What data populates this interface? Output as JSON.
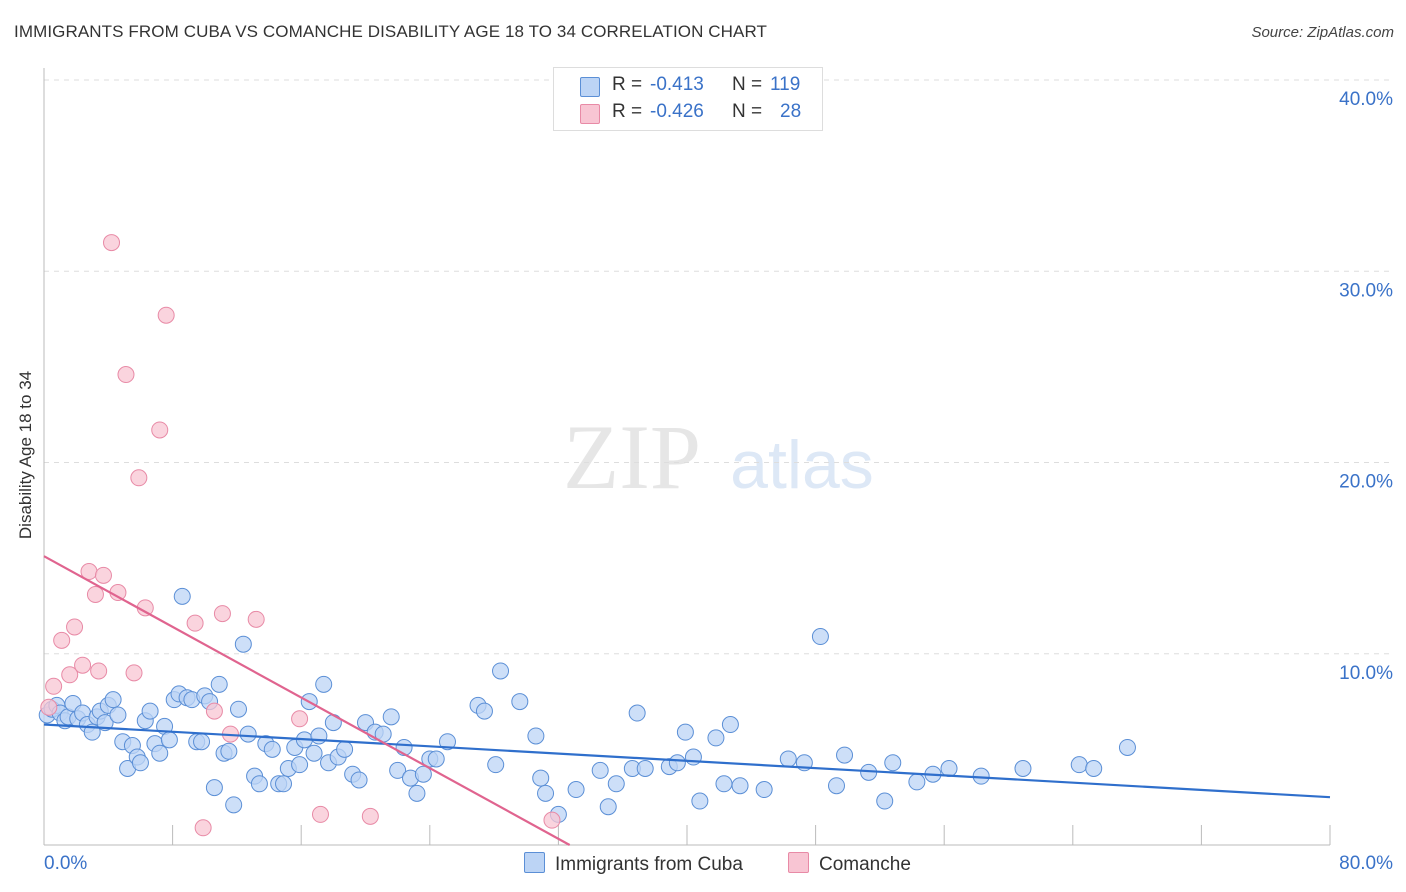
{
  "header": {
    "title": "IMMIGRANTS FROM CUBA VS COMANCHE DISABILITY AGE 18 TO 34 CORRELATION CHART",
    "source": "Source: ZipAtlas.com"
  },
  "watermark": {
    "zip": "ZIP",
    "atlas": "atlas"
  },
  "colors": {
    "cuba_fill": "#bcd4f5",
    "cuba_stroke": "#5b8fd6",
    "cuba_line": "#2f6fcc",
    "comanche_fill": "#f8c5d3",
    "comanche_stroke": "#e88aa6",
    "comanche_line": "#e0648f",
    "tick_label": "#3a72c8",
    "grid": "#dddddd"
  },
  "stats": {
    "cuba": {
      "r_label": "R =",
      "r_value": "-0.413",
      "n_label": "N =",
      "n_value": "119"
    },
    "comanche": {
      "r_label": "R =",
      "r_value": "-0.426",
      "n_label": "N =",
      "n_value": "28"
    }
  },
  "chart_data": {
    "type": "scatter",
    "title": "IMMIGRANTS FROM CUBA VS COMANCHE DISABILITY AGE 18 TO 34 CORRELATION CHART",
    "xlabel": "",
    "ylabel": "Disability Age 18 to 34",
    "xlim": [
      0,
      80
    ],
    "ylim": [
      0,
      40
    ],
    "x_tick_labels": [
      "0.0%",
      "80.0%"
    ],
    "y_ticks": [
      10,
      20,
      30,
      40
    ],
    "y_tick_labels": [
      "10.0%",
      "20.0%",
      "30.0%",
      "40.0%"
    ],
    "grid": true,
    "legend_position": "bottom-center",
    "series": [
      {
        "name": "Immigrants from Cuba",
        "trend": {
          "x": [
            0,
            80
          ],
          "y": [
            6.3,
            2.5
          ]
        },
        "points": [
          [
            0.2,
            6.8
          ],
          [
            0.5,
            7.1
          ],
          [
            0.8,
            7.3
          ],
          [
            1.0,
            6.9
          ],
          [
            1.3,
            6.5
          ],
          [
            1.5,
            6.7
          ],
          [
            1.8,
            7.4
          ],
          [
            2.1,
            6.6
          ],
          [
            2.4,
            6.9
          ],
          [
            2.7,
            6.3
          ],
          [
            3.0,
            5.9
          ],
          [
            3.3,
            6.7
          ],
          [
            3.5,
            7.0
          ],
          [
            3.8,
            6.4
          ],
          [
            4.0,
            7.3
          ],
          [
            4.3,
            7.6
          ],
          [
            4.6,
            6.8
          ],
          [
            4.9,
            5.4
          ],
          [
            5.2,
            4.0
          ],
          [
            5.5,
            5.2
          ],
          [
            5.8,
            4.6
          ],
          [
            6.0,
            4.3
          ],
          [
            6.3,
            6.5
          ],
          [
            6.6,
            7.0
          ],
          [
            6.9,
            5.3
          ],
          [
            7.2,
            4.8
          ],
          [
            7.5,
            6.2
          ],
          [
            7.8,
            5.5
          ],
          [
            8.1,
            7.6
          ],
          [
            8.4,
            7.9
          ],
          [
            8.6,
            13.0
          ],
          [
            8.9,
            7.7
          ],
          [
            9.2,
            7.6
          ],
          [
            9.5,
            5.4
          ],
          [
            9.8,
            5.4
          ],
          [
            10.0,
            7.8
          ],
          [
            10.3,
            7.5
          ],
          [
            10.6,
            3.0
          ],
          [
            10.9,
            8.4
          ],
          [
            11.2,
            4.8
          ],
          [
            11.5,
            4.9
          ],
          [
            11.8,
            2.1
          ],
          [
            12.1,
            7.1
          ],
          [
            12.4,
            10.5
          ],
          [
            12.7,
            5.8
          ],
          [
            13.1,
            3.6
          ],
          [
            13.4,
            3.2
          ],
          [
            13.8,
            5.3
          ],
          [
            14.2,
            5.0
          ],
          [
            14.6,
            3.2
          ],
          [
            14.9,
            3.2
          ],
          [
            15.2,
            4.0
          ],
          [
            15.6,
            5.1
          ],
          [
            15.9,
            4.2
          ],
          [
            16.2,
            5.5
          ],
          [
            16.5,
            7.5
          ],
          [
            16.8,
            4.8
          ],
          [
            17.1,
            5.7
          ],
          [
            17.4,
            8.4
          ],
          [
            17.7,
            4.3
          ],
          [
            18.0,
            6.4
          ],
          [
            18.3,
            4.6
          ],
          [
            18.7,
            5.0
          ],
          [
            19.2,
            3.7
          ],
          [
            19.6,
            3.4
          ],
          [
            20.0,
            6.4
          ],
          [
            20.6,
            5.9
          ],
          [
            21.1,
            5.8
          ],
          [
            21.6,
            6.7
          ],
          [
            22.0,
            3.9
          ],
          [
            22.4,
            5.1
          ],
          [
            22.8,
            3.5
          ],
          [
            23.2,
            2.7
          ],
          [
            23.6,
            3.7
          ],
          [
            24.0,
            4.5
          ],
          [
            24.4,
            4.5
          ],
          [
            25.1,
            5.4
          ],
          [
            27.0,
            7.3
          ],
          [
            27.4,
            7.0
          ],
          [
            28.1,
            4.2
          ],
          [
            28.4,
            9.1
          ],
          [
            29.6,
            7.5
          ],
          [
            30.6,
            5.7
          ],
          [
            30.9,
            3.5
          ],
          [
            31.2,
            2.7
          ],
          [
            32.0,
            1.6
          ],
          [
            33.1,
            2.9
          ],
          [
            34.6,
            3.9
          ],
          [
            35.1,
            2.0
          ],
          [
            35.6,
            3.2
          ],
          [
            36.6,
            4.0
          ],
          [
            36.9,
            6.9
          ],
          [
            37.4,
            4.0
          ],
          [
            38.9,
            4.1
          ],
          [
            39.4,
            4.3
          ],
          [
            39.9,
            5.9
          ],
          [
            40.4,
            4.6
          ],
          [
            40.8,
            2.3
          ],
          [
            41.8,
            5.6
          ],
          [
            42.3,
            3.2
          ],
          [
            42.7,
            6.3
          ],
          [
            43.3,
            3.1
          ],
          [
            44.8,
            2.9
          ],
          [
            46.3,
            4.5
          ],
          [
            47.3,
            4.3
          ],
          [
            48.3,
            10.9
          ],
          [
            49.3,
            3.1
          ],
          [
            49.8,
            4.7
          ],
          [
            51.3,
            3.8
          ],
          [
            52.3,
            2.3
          ],
          [
            52.8,
            4.3
          ],
          [
            54.3,
            3.3
          ],
          [
            55.3,
            3.7
          ],
          [
            56.3,
            4.0
          ],
          [
            58.3,
            3.6
          ],
          [
            60.9,
            4.0
          ],
          [
            64.4,
            4.2
          ],
          [
            65.3,
            4.0
          ],
          [
            67.4,
            5.1
          ]
        ]
      },
      {
        "name": "Comanche",
        "trend": {
          "x": [
            0,
            32.7
          ],
          "y": [
            15.1,
            0
          ]
        },
        "points": [
          [
            0.6,
            8.3
          ],
          [
            1.1,
            10.7
          ],
          [
            1.6,
            8.9
          ],
          [
            1.9,
            11.4
          ],
          [
            2.4,
            9.4
          ],
          [
            2.8,
            14.3
          ],
          [
            3.2,
            13.1
          ],
          [
            3.4,
            9.1
          ],
          [
            3.7,
            14.1
          ],
          [
            4.2,
            31.5
          ],
          [
            4.6,
            13.2
          ],
          [
            5.1,
            24.6
          ],
          [
            5.6,
            9.0
          ],
          [
            5.9,
            19.2
          ],
          [
            6.3,
            12.4
          ],
          [
            7.2,
            21.7
          ],
          [
            7.6,
            27.7
          ],
          [
            9.4,
            11.6
          ],
          [
            9.9,
            0.9
          ],
          [
            10.6,
            7.0
          ],
          [
            11.1,
            12.1
          ],
          [
            11.6,
            5.8
          ],
          [
            13.2,
            11.8
          ],
          [
            15.9,
            6.6
          ],
          [
            17.2,
            1.6
          ],
          [
            20.3,
            1.5
          ],
          [
            31.6,
            1.3
          ],
          [
            0.3,
            7.2
          ]
        ]
      }
    ]
  },
  "legend": {
    "items": [
      {
        "label": "Immigrants from Cuba"
      },
      {
        "label": "Comanche"
      }
    ]
  }
}
